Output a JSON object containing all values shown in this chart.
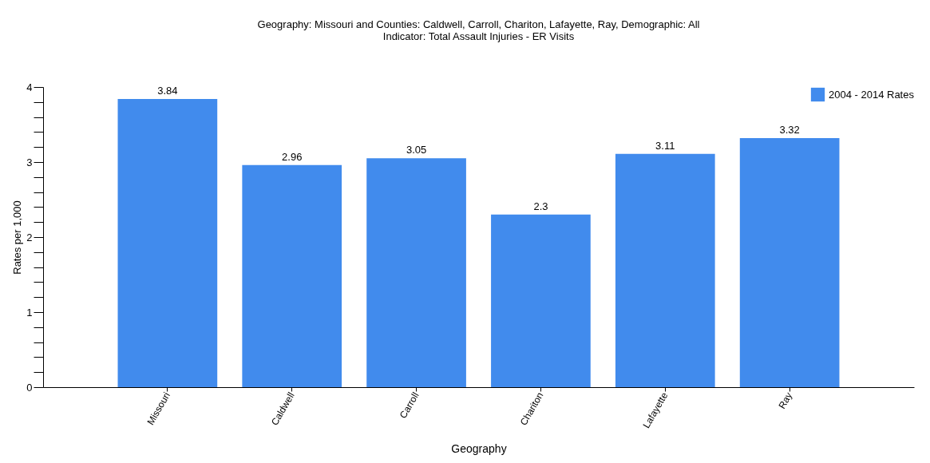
{
  "chart_data": {
    "type": "bar",
    "title": [
      "Geography: Missouri and Counties: Caldwell, Carroll, Chariton, Lafayette, Ray, Demographic: All",
      "Indicator: Total Assault Injuries - ER Visits"
    ],
    "xlabel": "Geography",
    "ylabel": "Rates per 1,000",
    "categories": [
      "Missouri",
      "Caldwell",
      "Carroll",
      "Chariton",
      "Lafayette",
      "Ray"
    ],
    "series": [
      {
        "name": "2004 - 2014 Rates",
        "color": "#418bed",
        "values": [
          3.84,
          2.96,
          3.05,
          2.3,
          3.11,
          3.32
        ]
      }
    ],
    "ylim": [
      0,
      4
    ],
    "yticks": [
      0,
      {
        "value": 0.2,
        "label": null
      },
      {
        "value": 0.4,
        "label": null
      },
      {
        "value": 0.6,
        "label": null
      },
      {
        "value": 0.8,
        "label": null
      },
      1,
      {
        "value": 1.2,
        "label": null
      },
      {
        "value": 1.4,
        "label": null
      },
      {
        "value": 1.6,
        "label": null
      },
      {
        "value": 1.8,
        "label": null
      },
      2,
      {
        "value": 2.2,
        "label": null
      },
      {
        "value": 2.4,
        "label": null
      },
      {
        "value": 2.6,
        "label": null
      },
      {
        "value": 2.8,
        "label": null
      },
      3,
      {
        "value": 3.2,
        "label": null
      },
      {
        "value": 3.4,
        "label": null
      },
      {
        "value": 3.6,
        "label": null
      },
      {
        "value": 3.8,
        "label": null
      },
      4
    ],
    "data_labels": true,
    "grid": false,
    "legend": "top right"
  }
}
